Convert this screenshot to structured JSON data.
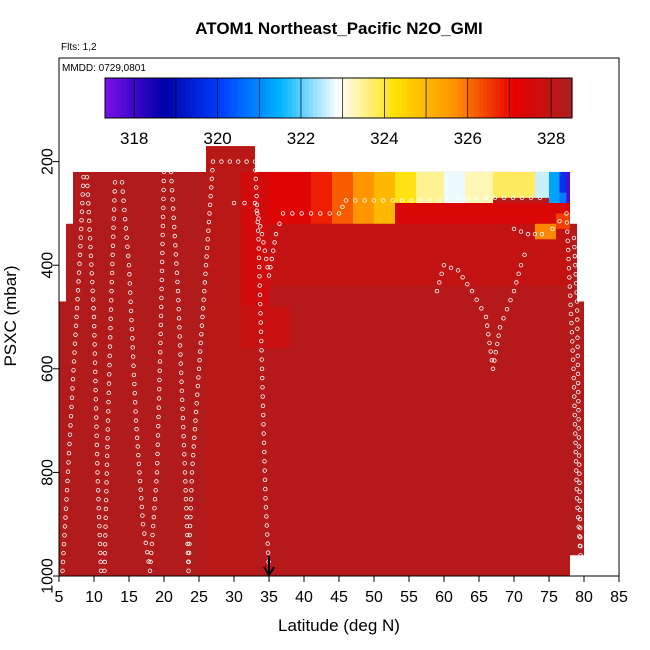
{
  "chart_data": {
    "type": "heatmap",
    "title": "ATOM1 Northeast_Pacific N2O_GMI",
    "subtitle": "Flts: 1,2",
    "annotation": "MMDD: 0729,0801",
    "xlabel": "Latitude (deg N)",
    "ylabel": "PSXC (mbar)",
    "xlim": [
      5,
      85
    ],
    "ylim": [
      1000,
      0
    ],
    "x_ticks": [
      "5",
      "10",
      "15",
      "20",
      "25",
      "30",
      "35",
      "40",
      "45",
      "50",
      "55",
      "60",
      "65",
      "70",
      "75",
      "80",
      "85"
    ],
    "y_ticks": [
      "200",
      "400",
      "600",
      "800",
      "1000"
    ],
    "colorbar": {
      "min": 317.3,
      "max": 328.5,
      "ticks": [
        "318",
        "320",
        "322",
        "324",
        "326",
        "328"
      ],
      "colors": [
        "#7b10e8",
        "#0000a8",
        "#0040ff",
        "#00b4ff",
        "#ffffff",
        "#ffe000",
        "#ff9000",
        "#e80000",
        "#a82020"
      ]
    },
    "marker": {
      "latitude": 35,
      "glyph": "arrow"
    },
    "grid": false,
    "background_value": 328.3,
    "regions": [
      {
        "lat0": 5.0,
        "lat1": 6.0,
        "p0": 470,
        "p1": 1000,
        "value": 328.3
      },
      {
        "lat0": 6.0,
        "lat1": 7.0,
        "p0": 320,
        "p1": 1000,
        "value": 328.3
      },
      {
        "lat0": 7.0,
        "lat1": 26.0,
        "p0": 220,
        "p1": 1000,
        "value": 328.3
      },
      {
        "lat0": 26.0,
        "lat1": 33.0,
        "p0": 170,
        "p1": 1000,
        "value": 328.1
      },
      {
        "lat0": 33.0,
        "lat1": 78.0,
        "p0": 220,
        "p1": 1000,
        "value": 328.2
      },
      {
        "lat0": 78.0,
        "lat1": 80.0,
        "p0": 470,
        "p1": 960,
        "value": 328.3
      },
      {
        "lat0": 78.0,
        "lat1": 79.0,
        "p0": 320,
        "p1": 470,
        "value": 328.2
      },
      {
        "lat0": 31.0,
        "lat1": 35.0,
        "p0": 220,
        "p1": 480,
        "value": 327.6
      },
      {
        "lat0": 31.0,
        "lat1": 38.0,
        "p0": 480,
        "p1": 560,
        "value": 327.8
      },
      {
        "lat0": 35.0,
        "lat1": 78.0,
        "p0": 320,
        "p1": 440,
        "value": 327.9
      },
      {
        "lat0": 35.0,
        "lat1": 41.0,
        "p0": 220,
        "p1": 320,
        "value": 327.3
      },
      {
        "lat0": 41.0,
        "lat1": 44.0,
        "p0": 220,
        "p1": 320,
        "value": 326.8
      },
      {
        "lat0": 44.0,
        "lat1": 47.0,
        "p0": 220,
        "p1": 320,
        "value": 326.2
      },
      {
        "lat0": 47.0,
        "lat1": 50.0,
        "p0": 220,
        "p1": 320,
        "value": 325.6
      },
      {
        "lat0": 50.0,
        "lat1": 53.0,
        "p0": 220,
        "p1": 320,
        "value": 325.0
      },
      {
        "lat0": 53.0,
        "lat1": 56.0,
        "p0": 220,
        "p1": 280,
        "value": 324.2
      },
      {
        "lat0": 56.0,
        "lat1": 60.0,
        "p0": 220,
        "p1": 280,
        "value": 323.5
      },
      {
        "lat0": 60.0,
        "lat1": 63.0,
        "p0": 220,
        "p1": 280,
        "value": 322.8
      },
      {
        "lat0": 63.0,
        "lat1": 67.0,
        "p0": 220,
        "p1": 280,
        "value": 323.3
      },
      {
        "lat0": 67.0,
        "lat1": 73.0,
        "p0": 220,
        "p1": 270,
        "value": 323.8
      },
      {
        "lat0": 73.0,
        "lat1": 75.0,
        "p0": 220,
        "p1": 270,
        "value": 322.6
      },
      {
        "lat0": 75.0,
        "lat1": 76.5,
        "p0": 220,
        "p1": 320,
        "value": 321.3
      },
      {
        "lat0": 76.5,
        "lat1": 77.5,
        "p0": 220,
        "p1": 260,
        "value": 319.8
      },
      {
        "lat0": 76.5,
        "lat1": 77.5,
        "p0": 260,
        "p1": 300,
        "value": 320.8
      },
      {
        "lat0": 77.5,
        "lat1": 78.0,
        "p0": 220,
        "p1": 300,
        "value": 317.8
      },
      {
        "lat0": 53.0,
        "lat1": 78.0,
        "p0": 280,
        "p1": 320,
        "value": 327.4
      },
      {
        "lat0": 73.0,
        "lat1": 76.0,
        "p0": 320,
        "p1": 350,
        "value": 325.8
      },
      {
        "lat0": 76.0,
        "lat1": 78.0,
        "p0": 300,
        "p1": 330,
        "value": 326.5
      }
    ],
    "flight_tracks": [
      {
        "name": "",
        "points": [
          [
            5.5,
            990
          ],
          [
            6,
            870
          ],
          [
            7,
            620
          ],
          [
            8,
            380
          ],
          [
            8.5,
            230
          ],
          [
            9,
            230
          ],
          [
            10,
            500
          ],
          [
            10.5,
            800
          ],
          [
            11,
            990
          ],
          [
            11.5,
            990
          ],
          [
            12,
            700
          ],
          [
            12.5,
            450
          ],
          [
            13,
            240
          ],
          [
            14,
            240
          ],
          [
            15,
            400
          ],
          [
            16,
            700
          ],
          [
            17,
            900
          ],
          [
            18,
            990
          ],
          [
            19,
            800
          ],
          [
            19.5,
            550
          ],
          [
            20,
            220
          ],
          [
            21,
            220
          ],
          [
            22,
            450
          ],
          [
            23,
            800
          ],
          [
            23.5,
            990
          ]
        ]
      },
      {
        "name": "",
        "points": [
          [
            23.5,
            990
          ],
          [
            24,
            800
          ],
          [
            25,
            600
          ],
          [
            26,
            400
          ],
          [
            27,
            200
          ],
          [
            33,
            200
          ],
          [
            33.5,
            350
          ],
          [
            34,
            600
          ],
          [
            34.5,
            850
          ],
          [
            35,
            990
          ]
        ]
      },
      {
        "name": "",
        "points": [
          [
            30,
            280
          ],
          [
            33,
            280
          ],
          [
            34,
            340
          ],
          [
            35,
            420
          ],
          [
            36,
            340
          ],
          [
            37,
            300
          ],
          [
            45,
            300
          ],
          [
            46,
            275
          ],
          [
            58,
            275
          ],
          [
            66,
            270
          ],
          [
            75,
            270
          ]
        ]
      },
      {
        "name": "",
        "points": [
          [
            70,
            330
          ],
          [
            72,
            340
          ],
          [
            74,
            340
          ],
          [
            75.5,
            330
          ],
          [
            77.5,
            300
          ],
          [
            78.5,
            600
          ],
          [
            79,
            850
          ],
          [
            79.5,
            960
          ],
          [
            79,
            470
          ],
          [
            78.5,
            330
          ]
        ]
      },
      {
        "name": "",
        "points": [
          [
            59,
            450
          ],
          [
            60,
            400
          ],
          [
            62,
            410
          ],
          [
            64,
            450
          ],
          [
            66,
            500
          ],
          [
            67,
            600
          ],
          [
            68,
            520
          ],
          [
            70,
            450
          ],
          [
            71,
            400
          ],
          [
            72,
            360
          ]
        ]
      }
    ]
  }
}
